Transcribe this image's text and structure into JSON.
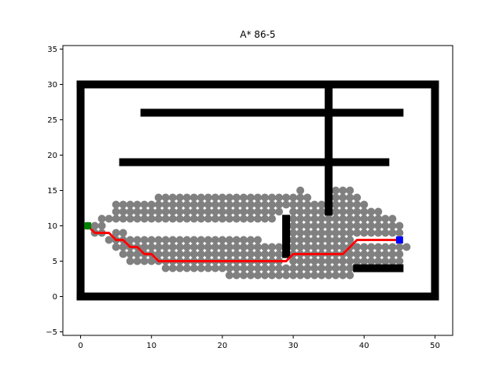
{
  "chart_data": {
    "type": "scatter",
    "title": "A* 86-5",
    "xlabel": "",
    "ylabel": "",
    "xlim": [
      -2.5,
      52.5
    ],
    "ylim": [
      -5.5,
      35.5
    ],
    "x_ticks": [
      0,
      10,
      20,
      30,
      40,
      50
    ],
    "y_ticks": [
      -5,
      0,
      5,
      10,
      15,
      20,
      25,
      30,
      35
    ],
    "grid": false,
    "colors": {
      "obstacle": "#000000",
      "explored": "#808080",
      "path": "#ff0000",
      "start": "#008000",
      "goal": "#0000ff"
    },
    "obstacle_segments": [
      {
        "x1": 0,
        "y1": 0,
        "x2": 50,
        "y2": 0
      },
      {
        "x1": 0,
        "y1": 30,
        "x2": 50,
        "y2": 30
      },
      {
        "x1": 0,
        "y1": 0,
        "x2": 0,
        "y2": 30
      },
      {
        "x1": 50,
        "y1": 0,
        "x2": 50,
        "y2": 30
      },
      {
        "x1": 9,
        "y1": 26,
        "x2": 45,
        "y2": 26
      },
      {
        "x1": 6,
        "y1": 19,
        "x2": 43,
        "y2": 19
      },
      {
        "x1": 35,
        "y1": 12,
        "x2": 35,
        "y2": 30
      },
      {
        "x1": 29,
        "y1": 6,
        "x2": 29,
        "y2": 11
      },
      {
        "x1": 39,
        "y1": 4,
        "x2": 45,
        "y2": 4
      }
    ],
    "explored_rows": [
      {
        "y": 15,
        "ranges": [
          [
            31,
            31
          ],
          [
            36,
            38
          ]
        ]
      },
      {
        "y": 14,
        "ranges": [
          [
            11,
            32
          ],
          [
            36,
            39
          ]
        ]
      },
      {
        "y": 13,
        "ranges": [
          [
            5,
            34
          ],
          [
            36,
            40
          ]
        ]
      },
      {
        "y": 12,
        "ranges": [
          [
            5,
            28
          ],
          [
            30,
            34
          ],
          [
            36,
            42
          ]
        ]
      },
      {
        "y": 11,
        "ranges": [
          [
            3,
            27
          ],
          [
            30,
            44
          ]
        ]
      },
      {
        "y": 10,
        "ranges": [
          [
            1,
            3
          ],
          [
            30,
            45
          ]
        ]
      },
      {
        "y": 9,
        "ranges": [
          [
            2,
            3
          ],
          [
            5,
            6
          ],
          [
            30,
            45
          ]
        ]
      },
      {
        "y": 8,
        "ranges": [
          [
            4,
            25
          ],
          [
            30,
            38
          ]
        ]
      },
      {
        "y": 7,
        "ranges": [
          [
            5,
            28
          ],
          [
            30,
            46
          ]
        ]
      },
      {
        "y": 6,
        "ranges": [
          [
            6,
            28
          ],
          [
            30,
            45
          ]
        ]
      },
      {
        "y": 5,
        "ranges": [
          [
            7,
            28
          ],
          [
            30,
            45
          ]
        ]
      },
      {
        "y": 4,
        "ranges": [
          [
            12,
            38
          ]
        ]
      },
      {
        "y": 3,
        "ranges": [
          [
            21,
            38
          ]
        ]
      }
    ],
    "path": {
      "x": [
        1,
        2,
        3,
        4,
        5,
        6,
        7,
        8,
        9,
        10,
        11,
        12,
        20,
        28,
        29,
        30,
        34,
        37,
        38,
        39,
        43,
        45
      ],
      "y": [
        10,
        9,
        9,
        9,
        8,
        8,
        7,
        7,
        6,
        6,
        5,
        5,
        5,
        5,
        5,
        6,
        6,
        6,
        7,
        8,
        8,
        8
      ]
    },
    "start": {
      "x": 1,
      "y": 10
    },
    "goal": {
      "x": 45,
      "y": 8
    }
  }
}
